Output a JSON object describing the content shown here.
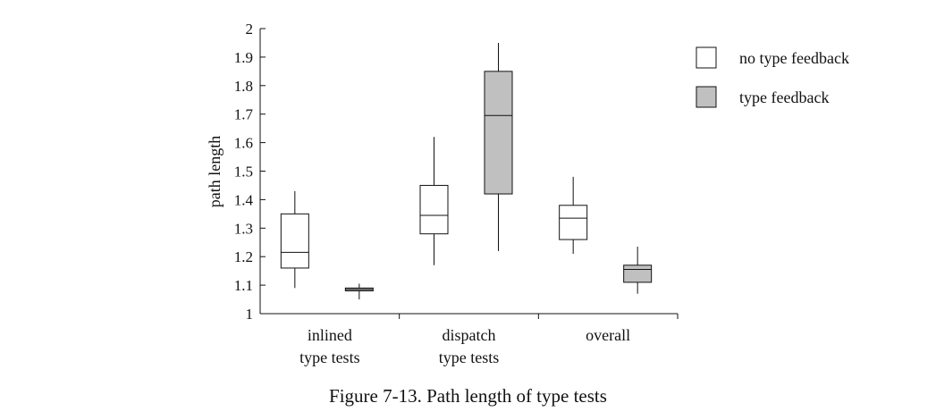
{
  "figure": {
    "caption": "Figure 7-13.  Path length of type tests"
  },
  "chart_data": {
    "type": "box",
    "ylabel": "path length",
    "xlabel": "",
    "ylim": [
      1,
      2
    ],
    "yticks": [
      1,
      1.1,
      1.2,
      1.3,
      1.4,
      1.5,
      1.6,
      1.7,
      1.8,
      1.9,
      2
    ],
    "ytick_labels": [
      "1",
      "1.1",
      "1.2",
      "1.3",
      "1.4",
      "1.5",
      "1.6",
      "1.7",
      "1.8",
      "1.9",
      "2"
    ],
    "grid": false,
    "legend_position": "top-right",
    "categories": [
      {
        "line1": "inlined",
        "line2": "type tests"
      },
      {
        "line1": "dispatch",
        "line2": "type tests"
      },
      {
        "line1": "overall",
        "line2": ""
      }
    ],
    "series": [
      {
        "name": "no type feedback",
        "color": "#ffffff",
        "boxes": [
          {
            "min": 1.09,
            "q1": 1.16,
            "median": 1.215,
            "q3": 1.35,
            "max": 1.43
          },
          {
            "min": 1.17,
            "q1": 1.28,
            "median": 1.345,
            "q3": 1.45,
            "max": 1.62
          },
          {
            "min": 1.21,
            "q1": 1.26,
            "median": 1.335,
            "q3": 1.38,
            "max": 1.48
          }
        ]
      },
      {
        "name": "type feedback",
        "color": "#c0c0c0",
        "boxes": [
          {
            "min": 1.05,
            "q1": 1.08,
            "median": 1.085,
            "q3": 1.09,
            "max": 1.105
          },
          {
            "min": 1.22,
            "q1": 1.42,
            "median": 1.695,
            "q3": 1.85,
            "max": 1.95
          },
          {
            "min": 1.07,
            "q1": 1.11,
            "median": 1.155,
            "q3": 1.17,
            "max": 1.235
          }
        ]
      }
    ]
  }
}
